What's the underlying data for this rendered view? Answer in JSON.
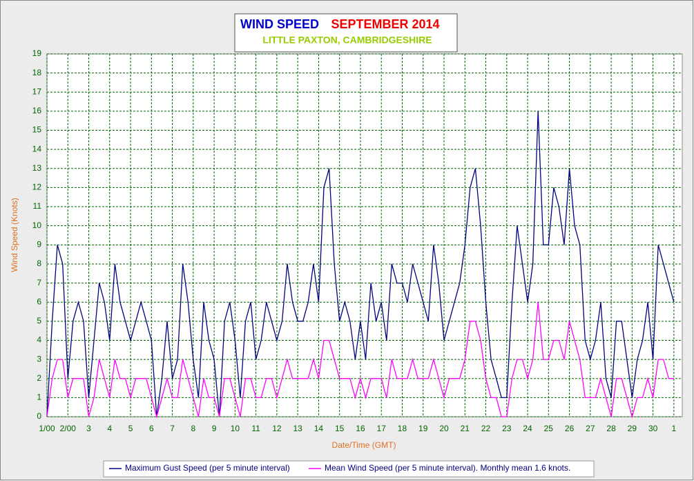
{
  "chart_data": {
    "type": "line",
    "title": "WIND SPEED",
    "period": "SEPTEMBER 2014",
    "subtitle": "LITTLE PAXTON, CAMBRIDGESHIRE",
    "x_label": "Date/Time (GMT)",
    "y_label": "Wind Speed (Knots)",
    "xlim": [
      0,
      30.4
    ],
    "ylim": [
      0,
      19
    ],
    "xticks": [
      {
        "value": 0,
        "label": "1/00"
      },
      {
        "value": 1,
        "label": "2/00"
      },
      {
        "value": 2,
        "label": "3"
      },
      {
        "value": 3,
        "label": "4"
      },
      {
        "value": 4,
        "label": "5"
      },
      {
        "value": 5,
        "label": "6"
      },
      {
        "value": 6,
        "label": "7"
      },
      {
        "value": 7,
        "label": "8"
      },
      {
        "value": 8,
        "label": "9"
      },
      {
        "value": 9,
        "label": "10"
      },
      {
        "value": 10,
        "label": "11"
      },
      {
        "value": 11,
        "label": "12"
      },
      {
        "value": 12,
        "label": "13"
      },
      {
        "value": 13,
        "label": "14"
      },
      {
        "value": 14,
        "label": "15"
      },
      {
        "value": 15,
        "label": "16"
      },
      {
        "value": 16,
        "label": "17"
      },
      {
        "value": 17,
        "label": "18"
      },
      {
        "value": 18,
        "label": "19"
      },
      {
        "value": 19,
        "label": "20"
      },
      {
        "value": 20,
        "label": "21"
      },
      {
        "value": 21,
        "label": "22"
      },
      {
        "value": 22,
        "label": "23"
      },
      {
        "value": 23,
        "label": "24"
      },
      {
        "value": 24,
        "label": "25"
      },
      {
        "value": 25,
        "label": "26"
      },
      {
        "value": 26,
        "label": "27"
      },
      {
        "value": 27,
        "label": "28"
      },
      {
        "value": 28,
        "label": "29"
      },
      {
        "value": 29,
        "label": "30"
      },
      {
        "value": 30,
        "label": "1"
      }
    ],
    "yticks": [
      0,
      1,
      2,
      3,
      4,
      5,
      6,
      7,
      8,
      9,
      10,
      11,
      12,
      13,
      14,
      15,
      16,
      17,
      18,
      19
    ],
    "grid": true,
    "x": [
      0,
      0.25,
      0.5,
      0.75,
      1,
      1.25,
      1.5,
      1.75,
      2,
      2.25,
      2.5,
      2.75,
      3,
      3.25,
      3.5,
      3.75,
      4,
      4.25,
      4.5,
      4.75,
      5,
      5.25,
      5.5,
      5.75,
      6,
      6.25,
      6.5,
      6.75,
      7,
      7.25,
      7.5,
      7.75,
      8,
      8.25,
      8.5,
      8.75,
      9,
      9.25,
      9.5,
      9.75,
      10,
      10.25,
      10.5,
      10.75,
      11,
      11.25,
      11.5,
      11.75,
      12,
      12.25,
      12.5,
      12.75,
      13,
      13.25,
      13.5,
      13.75,
      14,
      14.25,
      14.5,
      14.75,
      15,
      15.25,
      15.5,
      15.75,
      16,
      16.25,
      16.5,
      16.75,
      17,
      17.25,
      17.5,
      17.75,
      18,
      18.25,
      18.5,
      18.75,
      19,
      19.25,
      19.5,
      19.75,
      20,
      20.25,
      20.5,
      20.75,
      21,
      21.25,
      21.5,
      21.75,
      22,
      22.25,
      22.5,
      22.75,
      23,
      23.25,
      23.5,
      23.75,
      24,
      24.25,
      24.5,
      24.75,
      25,
      25.25,
      25.5,
      25.75,
      26,
      26.25,
      26.5,
      26.75,
      27,
      27.25,
      27.5,
      27.75,
      28,
      28.25,
      28.5,
      28.75,
      29,
      29.25,
      29.5,
      29.75,
      30
    ],
    "series": [
      {
        "name": "Maximum Gust Speed (per 5 minute interval)",
        "color": "#000080",
        "values": [
          0,
          5,
          9,
          8,
          2,
          5,
          6,
          5,
          1,
          4,
          7,
          6,
          4,
          8,
          6,
          5,
          4,
          5,
          6,
          5,
          4,
          0,
          2,
          5,
          2,
          3,
          8,
          6,
          3,
          1,
          6,
          4,
          3,
          0,
          5,
          6,
          4,
          1,
          5,
          6,
          3,
          4,
          6,
          5,
          4,
          5,
          8,
          6,
          5,
          5,
          6,
          8,
          6,
          12,
          13,
          8,
          5,
          6,
          5,
          3,
          5,
          3,
          7,
          5,
          6,
          4,
          8,
          7,
          7,
          6,
          8,
          7,
          6,
          5,
          9,
          7,
          4,
          5,
          6,
          7,
          9,
          12,
          13,
          10,
          6,
          3,
          2,
          1,
          1,
          6,
          10,
          8,
          6,
          8,
          16,
          9,
          9,
          12,
          11,
          9,
          13,
          10,
          9,
          4,
          3,
          4,
          6,
          2,
          1,
          5,
          5,
          3,
          1,
          3,
          4,
          6,
          3,
          9,
          8,
          7,
          6
        ]
      },
      {
        "name": "Mean Wind Speed (per 5 minute interval). Monthly mean 1.6 knots.",
        "color": "#ff00ff",
        "values": [
          0,
          2,
          3,
          3,
          1,
          2,
          2,
          2,
          0,
          1,
          3,
          2,
          1,
          3,
          2,
          2,
          1,
          2,
          2,
          2,
          1,
          0,
          1,
          2,
          1,
          1,
          3,
          2,
          1,
          0,
          2,
          1,
          1,
          0,
          2,
          2,
          1,
          0,
          2,
          2,
          1,
          1,
          2,
          2,
          1,
          2,
          3,
          2,
          2,
          2,
          2,
          3,
          2,
          4,
          4,
          3,
          2,
          2,
          2,
          1,
          2,
          1,
          2,
          2,
          2,
          1,
          3,
          2,
          2,
          2,
          3,
          2,
          2,
          2,
          3,
          2,
          1,
          2,
          2,
          2,
          3,
          5,
          5,
          4,
          2,
          1,
          1,
          0,
          0,
          2,
          3,
          3,
          2,
          3,
          6,
          3,
          3,
          4,
          4,
          3,
          5,
          4,
          3,
          1,
          1,
          1,
          2,
          1,
          0,
          2,
          2,
          1,
          0,
          1,
          1,
          2,
          1,
          3,
          3,
          2,
          2
        ]
      }
    ]
  }
}
